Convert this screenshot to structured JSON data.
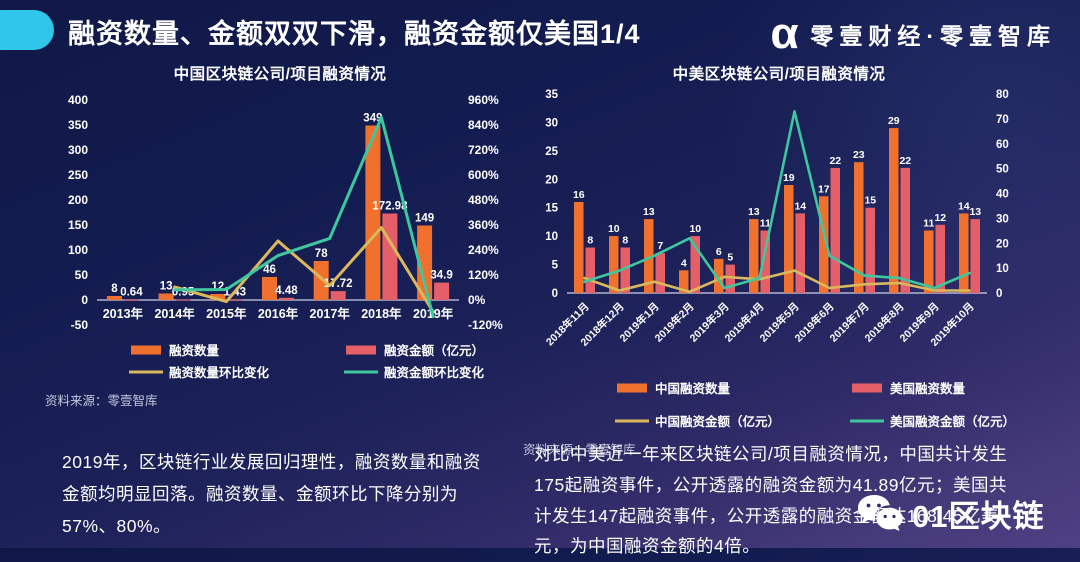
{
  "header": {
    "title": "融资数量、金额双双下滑，融资金额仅美国1/4",
    "logo_alpha": "α",
    "logo_text": "零壹财经·零壹智库"
  },
  "colors": {
    "accent_cyan": "#2FC6E9",
    "china_bar_orange": "#F0712E",
    "us_bar_pink": "#E55F68",
    "yellow_line": "#D9B95C",
    "green_line": "#3EC79F",
    "bg_top": "#101847",
    "bg_bottom": "#4D4083"
  },
  "chart_data": [
    {
      "type": "bar+line",
      "title": "中国区块链公司/项目融资情况",
      "categories": [
        "2013年",
        "2014年",
        "2015年",
        "2016年",
        "2017年",
        "2018年",
        "2019年"
      ],
      "series": [
        {
          "name": "融资数量",
          "type": "bar",
          "axis": "left",
          "color": "#F0712E",
          "values": [
            8,
            13,
            12,
            46,
            78,
            349,
            149
          ],
          "labels": [
            "8",
            "13",
            "12",
            "46",
            "78",
            "349",
            "149"
          ]
        },
        {
          "name": "融资金额（亿元）",
          "type": "bar",
          "axis": "left",
          "color": "#E55F68",
          "values": [
            0.64,
            0.95,
            1.43,
            4.48,
            17.72,
            172.98,
            34.9
          ],
          "labels": [
            "0.64",
            "0.95",
            "1.43",
            "4.48",
            "17.72",
            "172.98",
            "34.9"
          ]
        },
        {
          "name": "融资数量环比变化",
          "type": "line",
          "axis": "right",
          "color": "#D9B95C",
          "values": [
            null,
            62.5,
            -7.7,
            283.3,
            69.6,
            347.4,
            -57.3
          ]
        },
        {
          "name": "融资金额环比变化",
          "type": "line",
          "axis": "right",
          "color": "#3EC79F",
          "values": [
            null,
            48.4,
            50.5,
            213.3,
            295.5,
            876.2,
            -79.8
          ]
        }
      ],
      "left_axis": {
        "min": -50,
        "max": 400,
        "labels": [
          "400",
          "350",
          "300",
          "250",
          "200",
          "150",
          "100",
          "50",
          "0",
          "-50"
        ]
      },
      "right_axis": {
        "min": -120,
        "max": 960,
        "labels": [
          "960%",
          "840%",
          "720%",
          "600%",
          "480%",
          "360%",
          "240%",
          "120%",
          "0%",
          "-120%"
        ]
      },
      "legend_position": "bottom",
      "grid": false,
      "source": "资料来源：零壹智库"
    },
    {
      "type": "bar+line",
      "title": "中美区块链公司/项目融资情况",
      "categories": [
        "2018年11月",
        "2018年12月",
        "2019年1月",
        "2019年2月",
        "2019年3月",
        "2019年4月",
        "2019年5月",
        "2019年6月",
        "2019年7月",
        "2019年8月",
        "2019年9月",
        "2019年10月"
      ],
      "series": [
        {
          "name": "中国融资数量",
          "type": "bar",
          "axis": "left",
          "color": "#F0712E",
          "values": [
            16,
            10,
            13,
            4,
            6,
            13,
            19,
            17,
            23,
            29,
            11,
            14
          ],
          "labels": [
            "16",
            "10",
            "13",
            "4",
            "6",
            "13",
            "19",
            "17",
            "23",
            "29",
            "11",
            "14"
          ]
        },
        {
          "name": "美国融资数量",
          "type": "bar",
          "axis": "left",
          "color": "#E55F68",
          "values": [
            8,
            8,
            7,
            10,
            5,
            11,
            14,
            22,
            15,
            22,
            12,
            13
          ],
          "labels": [
            "8",
            "8",
            "7",
            "10",
            "5",
            "11",
            "14",
            "22",
            "15",
            "22",
            "12",
            "13"
          ]
        },
        {
          "name": "中国融资金额（亿元）",
          "type": "line",
          "axis": "right",
          "color": "#D9B95C",
          "values": [
            6,
            1,
            4.5,
            0.5,
            6.5,
            5.5,
            9,
            2,
            3.5,
            4,
            1,
            1
          ]
        },
        {
          "name": "美国融资金额（亿元）",
          "type": "line",
          "axis": "right",
          "color": "#3EC79F",
          "values": [
            4.5,
            9,
            15,
            22,
            2,
            6,
            73,
            15,
            7,
            6,
            2,
            8
          ]
        }
      ],
      "left_axis": {
        "min": 0,
        "max": 35,
        "labels": [
          "35",
          "30",
          "25",
          "20",
          "15",
          "10",
          "5",
          "0"
        ]
      },
      "right_axis": {
        "min": 0,
        "max": 80,
        "labels": [
          "80",
          "70",
          "60",
          "50",
          "40",
          "30",
          "20",
          "10",
          "0"
        ]
      },
      "legend_position": "bottom",
      "grid": false,
      "source": "资料来源：零壹智库"
    }
  ],
  "notes": {
    "left": "2019年，区块链行业发展回归理性，融资数量和融资金额均明显回落。融资数量、金额环比下降分别为57%、80%。",
    "right": "对比中美近一年来区块链公司/项目融资情况，中国共计发生175起融资事件，公开透露的融资金额为41.89亿元；美国共计发生147起融资事件，公开透露的融资金额达168.45亿美元，为中国融资金额的4倍。"
  },
  "watermark": {
    "icon": "wechat-icon",
    "text": "01区块链"
  }
}
